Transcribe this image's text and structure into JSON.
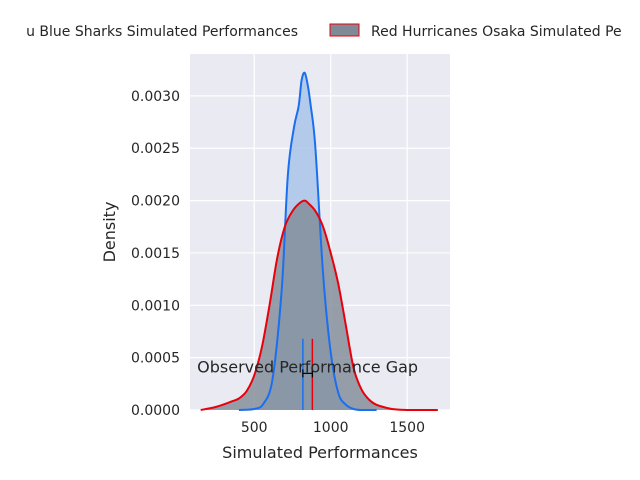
{
  "colors": {
    "background": "#eaeaf2",
    "grid": "#ffffff",
    "blue_line": "#1a6ff0",
    "blue_fill": "#a9c4ea",
    "red_line": "#e8000b",
    "red_fill": "#808996"
  },
  "chart_data": {
    "type": "area",
    "xlabel": "Simulated Performances",
    "ylabel": "Density",
    "xlim": [
      80,
      1780
    ],
    "ylim": [
      0,
      0.0034
    ],
    "x_ticks": [
      500,
      1000,
      1500
    ],
    "x_tick_labels": [
      "500",
      "1000",
      "1500"
    ],
    "y_ticks": [
      0,
      0.0005,
      0.001,
      0.0015,
      0.002,
      0.0025,
      0.003
    ],
    "y_tick_labels": [
      "0.0000",
      "0.0005",
      "0.0010",
      "0.0015",
      "0.0020",
      "0.0025",
      "0.0030"
    ],
    "grid": true,
    "legend_position": "top",
    "series": [
      {
        "name": "Kagoshima Sanraku Okisu Blue Sharks Simulated Performances",
        "legend_visible_text": "u Blue Sharks Simulated Performances",
        "x": [
          400,
          500,
          560,
          620,
          680,
          720,
          760,
          790,
          810,
          830,
          850,
          870,
          900,
          950,
          1000,
          1050,
          1100,
          1150,
          1200,
          1300
        ],
        "y": [
          0.0,
          1e-05,
          6e-05,
          0.0003,
          0.00116,
          0.00225,
          0.0027,
          0.0029,
          0.00315,
          0.00322,
          0.0031,
          0.0029,
          0.0025,
          0.0013,
          0.00055,
          0.00016,
          5e-05,
          1e-05,
          0.0,
          0.0
        ]
      },
      {
        "name": "Red Hurricanes Osaka Simulated Performances",
        "legend_visible_text": "Red Hurricanes Osaka Simulated Pe",
        "x": [
          150,
          250,
          350,
          400,
          450,
          500,
          550,
          600,
          650,
          700,
          750,
          800,
          830,
          850,
          900,
          950,
          1000,
          1050,
          1100,
          1150,
          1200,
          1250,
          1300,
          1400,
          1500,
          1600,
          1700
        ],
        "y": [
          0.0,
          3e-05,
          8e-05,
          0.00011,
          0.00018,
          0.00033,
          0.0006,
          0.001,
          0.00145,
          0.00175,
          0.0019,
          0.00198,
          0.002,
          0.00198,
          0.0019,
          0.00175,
          0.0015,
          0.0012,
          0.0008,
          0.0004,
          0.0002,
          0.0001,
          5e-05,
          1e-05,
          0.0,
          0.0,
          0.0
        ]
      }
    ],
    "markers": [
      {
        "series": "Kagoshima Sanraku Okisu Blue Sharks Simulated Performances",
        "x": 818,
        "y_top": 0.00068
      },
      {
        "series": "Red Hurricanes Osaka Simulated Performances",
        "x": 880,
        "y_top": 0.00068
      }
    ],
    "annotation": {
      "text": "Observed Performance Gap",
      "gap_x_start": 818,
      "gap_x_end": 880,
      "gap_y": 0.00035
    }
  }
}
